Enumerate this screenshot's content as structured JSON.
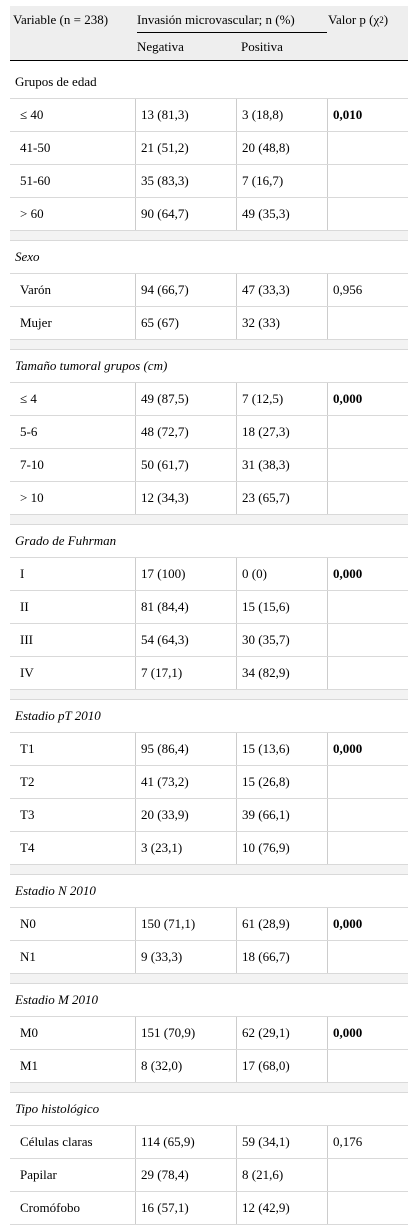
{
  "table": {
    "header": {
      "variable": "Variable (n = 238)",
      "invasion": "Invasión microvascular; n (%)",
      "pvalue_prefix": "Valor p (χ",
      "pvalue_sup": "2",
      "pvalue_suffix": ")",
      "negativa": "Negativa",
      "positiva": "Positiva"
    },
    "groups": [
      {
        "title": "Grupos de edad",
        "italic": false,
        "rows": [
          {
            "label": "≤ 40",
            "neg": "13 (81,3)",
            "pos": "3 (18,8)",
            "p": "0,010",
            "bold": true
          },
          {
            "label": "41-50",
            "neg": "21 (51,2)",
            "pos": "20 (48,8)",
            "p": "",
            "bold": false
          },
          {
            "label": "51-60",
            "neg": "35 (83,3)",
            "pos": "7 (16,7)",
            "p": "",
            "bold": false
          },
          {
            "label": "> 60",
            "neg": "90 (64,7)",
            "pos": "49 (35,3)",
            "p": "",
            "bold": false
          }
        ]
      },
      {
        "title": "Sexo",
        "italic": true,
        "rows": [
          {
            "label": "Varón",
            "neg": "94 (66,7)",
            "pos": "47 (33,3)",
            "p": "0,956",
            "bold": false
          },
          {
            "label": "Mujer",
            "neg": "65 (67)",
            "pos": "32 (33)",
            "p": "",
            "bold": false
          }
        ]
      },
      {
        "title": "Tamaño tumoral grupos (cm)",
        "italic": true,
        "rows": [
          {
            "label": "≤ 4",
            "neg": "49 (87,5)",
            "pos": "7 (12,5)",
            "p": "0,000",
            "bold": true
          },
          {
            "label": "5-6",
            "neg": "48 (72,7)",
            "pos": "18 (27,3)",
            "p": "",
            "bold": false
          },
          {
            "label": "7-10",
            "neg": "50 (61,7)",
            "pos": "31 (38,3)",
            "p": "",
            "bold": false
          },
          {
            "label": "> 10",
            "neg": "12 (34,3)",
            "pos": "23 (65,7)",
            "p": "",
            "bold": false
          }
        ]
      },
      {
        "title": "Grado de Fuhrman",
        "italic": true,
        "rows": [
          {
            "label": "I",
            "neg": "17 (100)",
            "pos": "0 (0)",
            "p": "0,000",
            "bold": true
          },
          {
            "label": "II",
            "neg": "81 (84,4)",
            "pos": "15 (15,6)",
            "p": "",
            "bold": false
          },
          {
            "label": "III",
            "neg": "54 (64,3)",
            "pos": "30 (35,7)",
            "p": "",
            "bold": false
          },
          {
            "label": "IV",
            "neg": "7 (17,1)",
            "pos": "34 (82,9)",
            "p": "",
            "bold": false
          }
        ]
      },
      {
        "title": "Estadio pT 2010",
        "italic": true,
        "rows": [
          {
            "label": "T1",
            "neg": "95 (86,4)",
            "pos": "15 (13,6)",
            "p": "0,000",
            "bold": true
          },
          {
            "label": "T2",
            "neg": "41 (73,2)",
            "pos": "15 (26,8)",
            "p": "",
            "bold": false
          },
          {
            "label": "T3",
            "neg": "20 (33,9)",
            "pos": "39 (66,1)",
            "p": "",
            "bold": false
          },
          {
            "label": "T4",
            "neg": "3 (23,1)",
            "pos": "10 (76,9)",
            "p": "",
            "bold": false
          }
        ]
      },
      {
        "title": "Estadio N 2010",
        "italic": true,
        "rows": [
          {
            "label": "N0",
            "neg": "150 (71,1)",
            "pos": "61 (28,9)",
            "p": "0,000",
            "bold": true
          },
          {
            "label": "N1",
            "neg": "9 (33,3)",
            "pos": "18 (66,7)",
            "p": "",
            "bold": false
          }
        ]
      },
      {
        "title": "Estadio M 2010",
        "italic": true,
        "rows": [
          {
            "label": "M0",
            "neg": "151 (70,9)",
            "pos": "62 (29,1)",
            "p": "0,000",
            "bold": true
          },
          {
            "label": "M1",
            "neg": "8 (32,0)",
            "pos": "17 (68,0)",
            "p": "",
            "bold": false
          }
        ]
      },
      {
        "title": "Tipo histológico",
        "italic": true,
        "rows": [
          {
            "label": "Células claras",
            "neg": "114 (65,9)",
            "pos": "59 (34,1)",
            "p": "0,176",
            "bold": false
          },
          {
            "label": "Papilar",
            "neg": "29 (78,4)",
            "pos": "8 (21,6)",
            "p": "",
            "bold": false
          },
          {
            "label": "Cromófobo",
            "neg": "16 (57,1)",
            "pos": "12 (42,9)",
            "p": "",
            "bold": false
          }
        ]
      }
    ]
  }
}
